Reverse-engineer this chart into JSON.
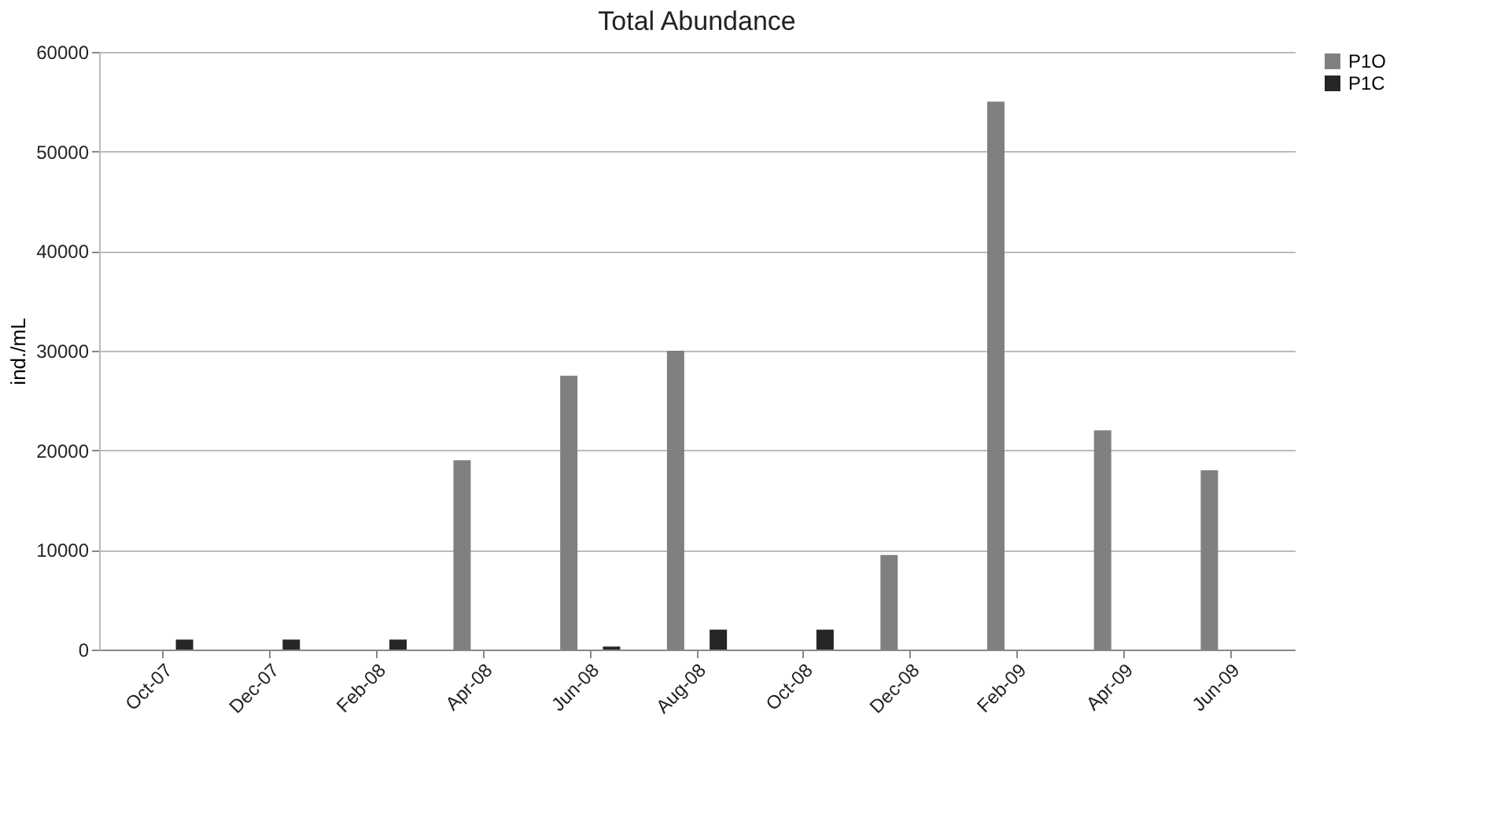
{
  "chart_data": {
    "type": "bar",
    "title": "Total Abundance",
    "ylabel": "ind./mL",
    "categories": [
      "Oct-07",
      "Dec-07",
      "Feb-08",
      "Apr-08",
      "Jun-08",
      "Aug-08",
      "Oct-08",
      "Dec-08",
      "Feb-09",
      "Apr-09",
      "Jun-09"
    ],
    "series": [
      {
        "name": "P1O",
        "color": "#808080",
        "values": [
          0,
          0,
          0,
          19000,
          27500,
          30000,
          0,
          9500,
          55000,
          22000,
          18000
        ]
      },
      {
        "name": "P1C",
        "color": "#262626",
        "values": [
          1000,
          1000,
          1000,
          0,
          300,
          2000,
          2000,
          0,
          0,
          0,
          0
        ]
      }
    ],
    "ylim": [
      0,
      60000
    ],
    "yticks": [
      0,
      10000,
      20000,
      30000,
      40000,
      50000,
      60000
    ],
    "grid": "y",
    "legend": "right"
  }
}
